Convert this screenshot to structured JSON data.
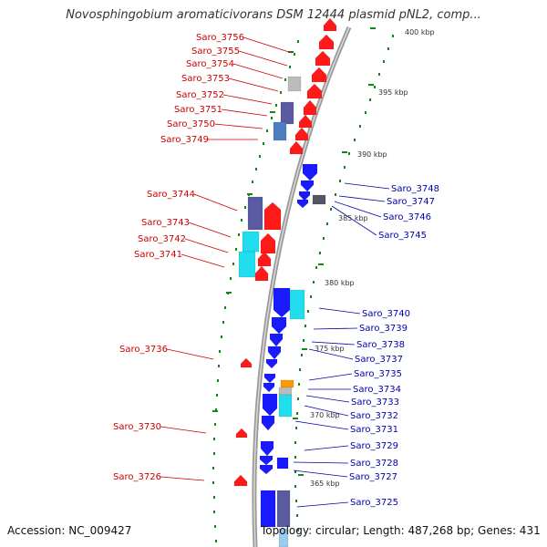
{
  "title": "Novosphingobium aromaticivorans DSM 12444 plasmid pNL2, comp...",
  "accession_line": "Accession: NC_009427",
  "summary_line": "Topology: circular; Length: 487,268 bp; Genes: 431",
  "colors": {
    "forward_gene": "#ff1a1a",
    "reverse_gene": "#1a1aff",
    "cyan_feature": "#22ddee",
    "purple_feature": "#5a5aa0",
    "orange_feature": "#ff9900",
    "grey_feature": "#bbbbbb",
    "label_left": "#cc0000",
    "label_right": "#0000aa",
    "tick_mark": "#118811"
  },
  "kbp_labels": [
    "400 kbp",
    "395 kbp",
    "390 kbp",
    "385 kbp",
    "380 kbp",
    "375 kbp",
    "370 kbp",
    "365 kbp"
  ],
  "left_genes": [
    "Saro_3756",
    "Saro_3755",
    "Saro_3754",
    "Saro_3753",
    "Saro_3752",
    "Saro_3751",
    "Saro_3750",
    "Saro_3749",
    "Saro_3744",
    "Saro_3743",
    "Saro_3742",
    "Saro_3741",
    "Saro_3736",
    "Saro_3730",
    "Saro_3726"
  ],
  "right_genes": [
    "Saro_3748",
    "Saro_3747",
    "Saro_3746",
    "Saro_3745",
    "Saro_3740",
    "Saro_3739",
    "Saro_3738",
    "Saro_3737",
    "Saro_3735",
    "Saro_3734",
    "Saro_3733",
    "Saro_3732",
    "Saro_3731",
    "Saro_3729",
    "Saro_3728",
    "Saro_3727",
    "Saro_3725"
  ]
}
